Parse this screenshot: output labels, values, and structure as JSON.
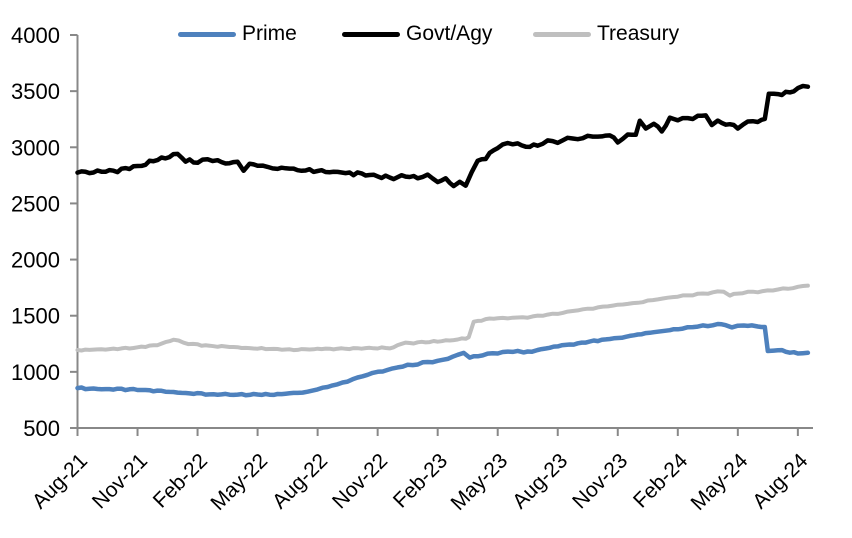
{
  "chart_data": {
    "type": "line",
    "title": "",
    "legend": {
      "position": "top",
      "entries": [
        "Prime",
        "Govt/Agy",
        "Treasury"
      ]
    },
    "x_axis": {
      "unit": "month-year",
      "tick_labels": [
        "Aug-21",
        "Nov-21",
        "Feb-22",
        "May-22",
        "Aug-22",
        "Nov-22",
        "Feb-23",
        "May-23",
        "Aug-23",
        "Nov-23",
        "Feb-24",
        "May-24",
        "Aug-24"
      ],
      "months_per_tick": 3,
      "range_months": [
        0,
        36.5
      ]
    },
    "y_axis": {
      "min": 500,
      "max": 4000,
      "tick_step": 500,
      "tick_labels": [
        "4000",
        "3500",
        "3000",
        "2500",
        "2000",
        "1500",
        "1000",
        "500"
      ]
    },
    "series": [
      {
        "name": "Prime",
        "color": "#4E81BD",
        "stroke_width": 4.5,
        "jitter": 8,
        "anchors": [
          [
            0,
            855
          ],
          [
            1,
            848
          ],
          [
            2,
            845
          ],
          [
            3,
            840
          ],
          [
            4,
            830
          ],
          [
            5,
            818
          ],
          [
            6,
            805
          ],
          [
            7,
            798
          ],
          [
            8,
            795
          ],
          [
            9,
            798
          ],
          [
            10,
            802
          ],
          [
            11,
            812
          ],
          [
            11.5,
            822
          ],
          [
            12,
            850
          ],
          [
            12.5,
            868
          ],
          [
            13,
            892
          ],
          [
            13.5,
            920
          ],
          [
            14,
            948
          ],
          [
            14.5,
            978
          ],
          [
            15,
            1000
          ],
          [
            15.5,
            1020
          ],
          [
            16,
            1042
          ],
          [
            16.5,
            1058
          ],
          [
            17,
            1072
          ],
          [
            17.5,
            1088
          ],
          [
            18,
            1098
          ],
          [
            18.5,
            1120
          ],
          [
            19,
            1150
          ],
          [
            19.3,
            1172
          ],
          [
            19.6,
            1125
          ],
          [
            20,
            1142
          ],
          [
            20.5,
            1158
          ],
          [
            21,
            1165
          ],
          [
            21.5,
            1180
          ],
          [
            22,
            1188
          ],
          [
            22.3,
            1172
          ],
          [
            22.7,
            1185
          ],
          [
            23,
            1195
          ],
          [
            24,
            1228
          ],
          [
            25,
            1255
          ],
          [
            26,
            1278
          ],
          [
            27,
            1302
          ],
          [
            28,
            1332
          ],
          [
            29,
            1358
          ],
          [
            30,
            1380
          ],
          [
            30.5,
            1395
          ],
          [
            31,
            1402
          ],
          [
            31.5,
            1412
          ],
          [
            32,
            1420
          ],
          [
            32.4,
            1418
          ],
          [
            32.7,
            1395
          ],
          [
            33,
            1405
          ],
          [
            33.3,
            1420
          ],
          [
            33.7,
            1408
          ],
          [
            34,
            1405
          ],
          [
            34.35,
            1392
          ],
          [
            34.5,
            1185
          ],
          [
            34.8,
            1195
          ],
          [
            35.2,
            1188
          ],
          [
            35.6,
            1175
          ],
          [
            36,
            1168
          ],
          [
            36.5,
            1170
          ]
        ]
      },
      {
        "name": "Govt/Agy",
        "color": "#000000",
        "stroke_width": 4.5,
        "jitter": 17,
        "anchors": [
          [
            0,
            2775
          ],
          [
            1,
            2780
          ],
          [
            2,
            2795
          ],
          [
            3,
            2830
          ],
          [
            4,
            2885
          ],
          [
            5,
            2940
          ],
          [
            5.4,
            2880
          ],
          [
            6,
            2870
          ],
          [
            6.5,
            2895
          ],
          [
            7,
            2880
          ],
          [
            7.6,
            2850
          ],
          [
            8,
            2880
          ],
          [
            8.3,
            2790
          ],
          [
            8.6,
            2840
          ],
          [
            9,
            2850
          ],
          [
            9.5,
            2815
          ],
          [
            10,
            2815
          ],
          [
            11,
            2800
          ],
          [
            12,
            2790
          ],
          [
            13,
            2775
          ],
          [
            14,
            2765
          ],
          [
            15,
            2745
          ],
          [
            16,
            2725
          ],
          [
            16.4,
            2750
          ],
          [
            17,
            2730
          ],
          [
            17.5,
            2745
          ],
          [
            18,
            2695
          ],
          [
            18.4,
            2720
          ],
          [
            18.8,
            2660
          ],
          [
            19.1,
            2690
          ],
          [
            19.4,
            2655
          ],
          [
            19.7,
            2780
          ],
          [
            20,
            2870
          ],
          [
            20.4,
            2905
          ],
          [
            21,
            3005
          ],
          [
            21.5,
            3040
          ],
          [
            22,
            3030
          ],
          [
            22.4,
            3000
          ],
          [
            23,
            3020
          ],
          [
            23.5,
            3050
          ],
          [
            24,
            3045
          ],
          [
            24.5,
            3075
          ],
          [
            25,
            3070
          ],
          [
            25.5,
            3095
          ],
          [
            26,
            3095
          ],
          [
            26.6,
            3105
          ],
          [
            27,
            3045
          ],
          [
            27.5,
            3105
          ],
          [
            27.9,
            3125
          ],
          [
            28.1,
            3240
          ],
          [
            28.4,
            3165
          ],
          [
            28.8,
            3210
          ],
          [
            29.2,
            3155
          ],
          [
            29.6,
            3255
          ],
          [
            30,
            3250
          ],
          [
            30.5,
            3265
          ],
          [
            31,
            3270
          ],
          [
            31.4,
            3295
          ],
          [
            31.7,
            3200
          ],
          [
            32,
            3230
          ],
          [
            32.4,
            3215
          ],
          [
            33,
            3175
          ],
          [
            33.5,
            3230
          ],
          [
            34,
            3230
          ],
          [
            34.35,
            3255
          ],
          [
            34.55,
            3490
          ],
          [
            34.8,
            3470
          ],
          [
            35.2,
            3480
          ],
          [
            35.6,
            3490
          ],
          [
            36,
            3520
          ],
          [
            36.5,
            3540
          ]
        ]
      },
      {
        "name": "Treasury",
        "color": "#BFBFBF",
        "stroke_width": 4,
        "jitter": 7,
        "anchors": [
          [
            0,
            1195
          ],
          [
            1,
            1198
          ],
          [
            2,
            1205
          ],
          [
            3,
            1215
          ],
          [
            4,
            1240
          ],
          [
            4.8,
            1290
          ],
          [
            5.3,
            1258
          ],
          [
            6,
            1242
          ],
          [
            7,
            1228
          ],
          [
            8,
            1218
          ],
          [
            9,
            1208
          ],
          [
            10,
            1200
          ],
          [
            11,
            1198
          ],
          [
            12,
            1202
          ],
          [
            13,
            1205
          ],
          [
            14,
            1208
          ],
          [
            15,
            1210
          ],
          [
            15.8,
            1215
          ],
          [
            16.2,
            1255
          ],
          [
            17,
            1260
          ],
          [
            18,
            1270
          ],
          [
            19,
            1288
          ],
          [
            19.4,
            1300
          ],
          [
            19.55,
            1310
          ],
          [
            19.8,
            1440
          ],
          [
            20.2,
            1462
          ],
          [
            20.6,
            1475
          ],
          [
            21,
            1472
          ],
          [
            21.5,
            1478
          ],
          [
            22,
            1482
          ],
          [
            22.5,
            1488
          ],
          [
            23,
            1498
          ],
          [
            23.5,
            1510
          ],
          [
            24,
            1522
          ],
          [
            24.5,
            1535
          ],
          [
            25,
            1548
          ],
          [
            25.5,
            1560
          ],
          [
            26,
            1572
          ],
          [
            26.5,
            1585
          ],
          [
            27,
            1598
          ],
          [
            27.5,
            1608
          ],
          [
            28,
            1618
          ],
          [
            28.5,
            1632
          ],
          [
            29,
            1648
          ],
          [
            29.5,
            1660
          ],
          [
            30,
            1672
          ],
          [
            30.5,
            1682
          ],
          [
            31,
            1692
          ],
          [
            31.5,
            1700
          ],
          [
            32,
            1712
          ],
          [
            32.3,
            1718
          ],
          [
            32.6,
            1680
          ],
          [
            33,
            1700
          ],
          [
            33.5,
            1708
          ],
          [
            34,
            1712
          ],
          [
            34.5,
            1722
          ],
          [
            35,
            1732
          ],
          [
            35.5,
            1742
          ],
          [
            36,
            1755
          ],
          [
            36.5,
            1768
          ]
        ]
      }
    ],
    "grid": "off",
    "axis_color": "#888888",
    "text_color": "#000000"
  }
}
